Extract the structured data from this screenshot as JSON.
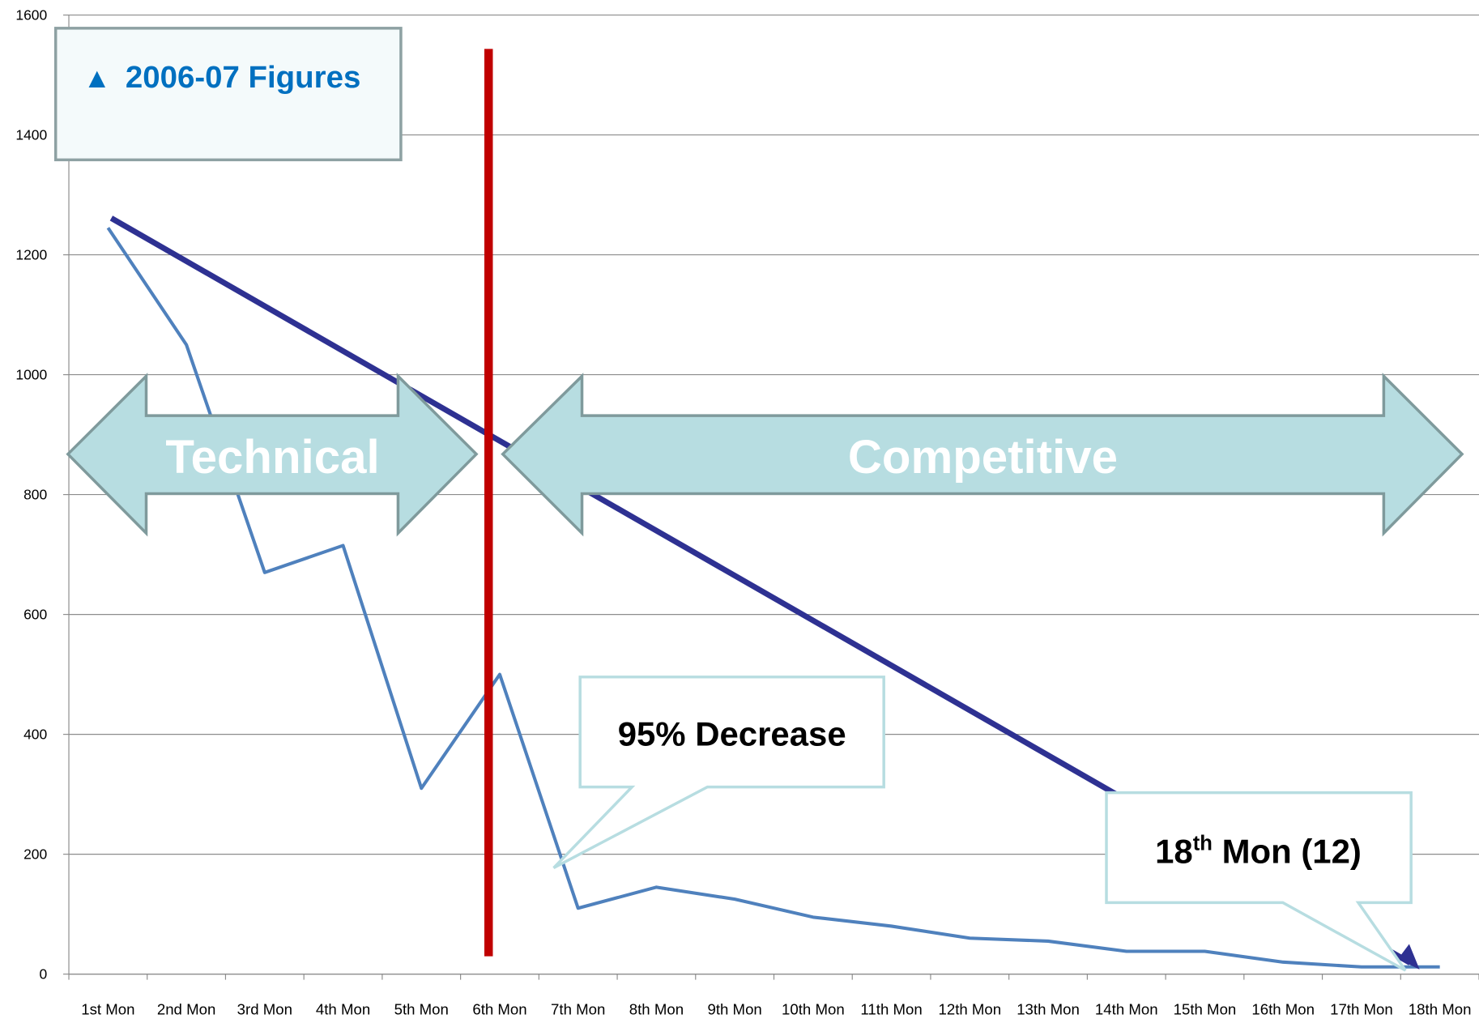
{
  "chart_data": {
    "type": "line",
    "categories": [
      "1st Mon",
      "2nd Mon",
      "3rd Mon",
      "4th Mon",
      "5th Mon",
      "6th Mon",
      "7th Mon",
      "8th Mon",
      "9th Mon",
      "10th Mon",
      "11th Mon",
      "12th Mon",
      "13th Mon",
      "14th Mon",
      "15th Mon",
      "16th Mon",
      "17th Mon",
      "18th Mon"
    ],
    "series": [
      {
        "name": "2006-07 Figures",
        "color": "#4f81bd",
        "values": [
          1245,
          1050,
          670,
          715,
          310,
          500,
          110,
          145,
          125,
          95,
          80,
          60,
          55,
          38,
          38,
          20,
          12,
          12
        ]
      }
    ],
    "ylim": [
      0,
      1600
    ],
    "yticks": [
      0,
      200,
      400,
      600,
      800,
      1000,
      1200,
      1400,
      1600
    ],
    "grid": true,
    "annotations": {
      "left_phase": "Technical",
      "right_phase": "Competitive",
      "callout_decrease": "95% Decrease",
      "callout_last": [
        "18",
        "th",
        " Mon (12)"
      ]
    }
  }
}
